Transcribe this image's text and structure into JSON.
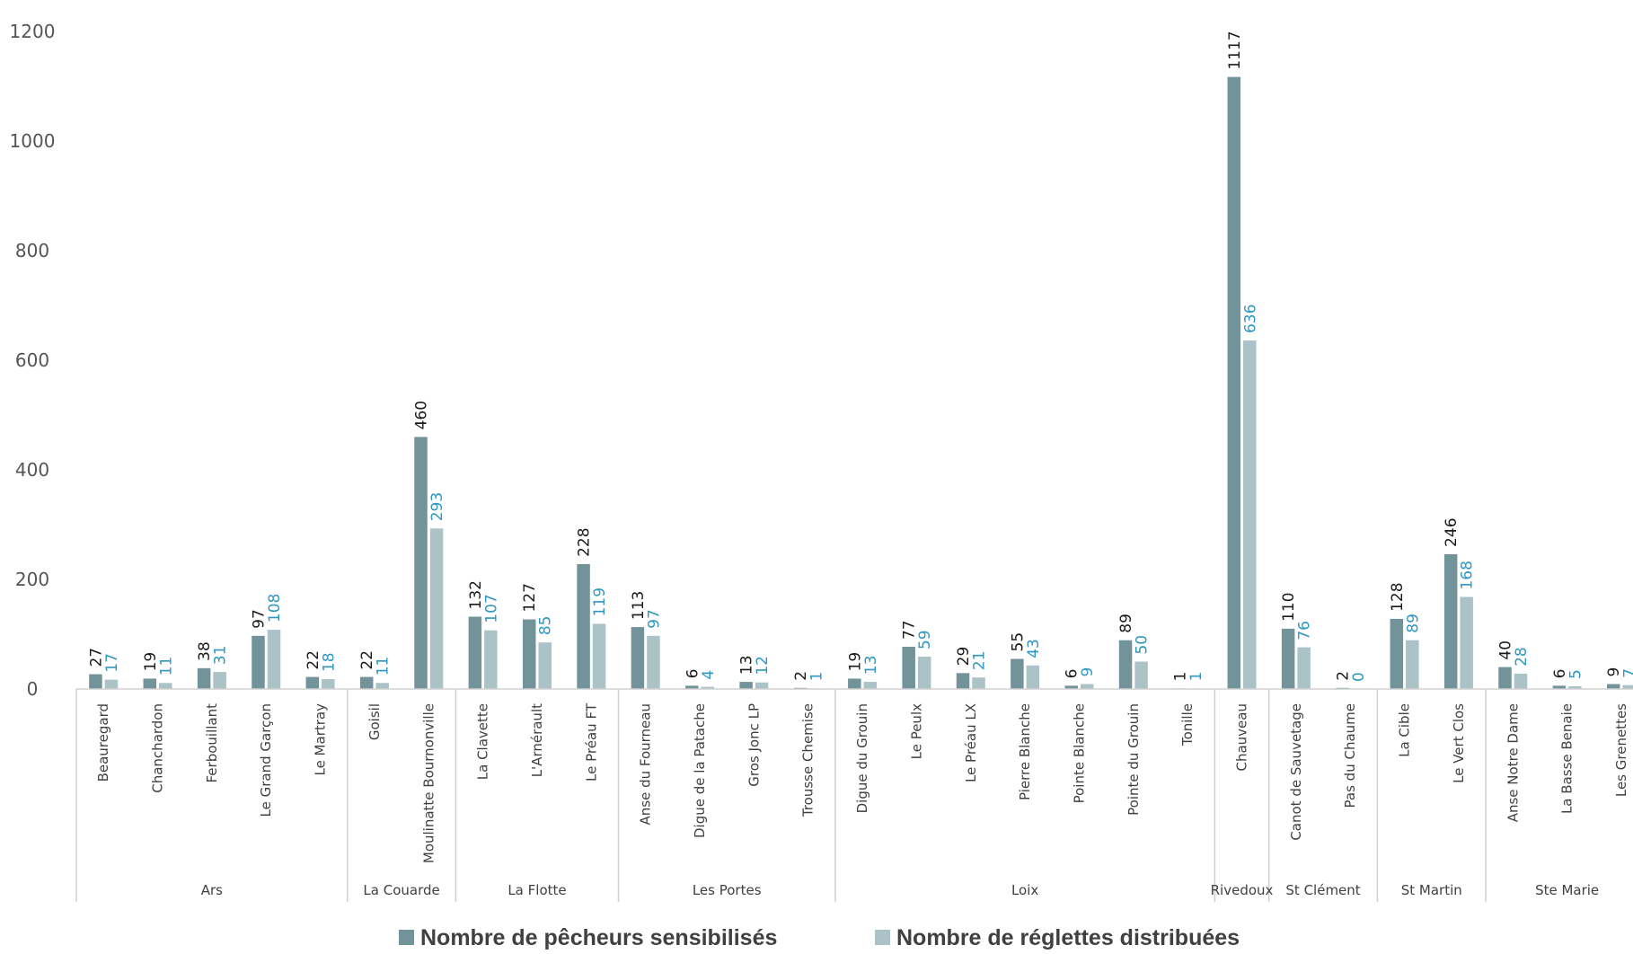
{
  "chart_data": {
    "type": "bar",
    "ylim": [
      0,
      1200
    ],
    "yticks": [
      0,
      200,
      400,
      600,
      800,
      1000,
      1200
    ],
    "grid": false,
    "legend_position": "bottom",
    "groups": [
      {
        "name": "Ars",
        "categories": [
          "Beauregard",
          "Chanchardon",
          "Ferbouillant",
          "Le Grand Garçon",
          "Le Martray"
        ]
      },
      {
        "name": "La Couarde",
        "categories": [
          "Goisil",
          "Moulinatte Bournonville"
        ]
      },
      {
        "name": "La Flotte",
        "categories": [
          "La Clavette",
          "L'Arnérault",
          "Le Préau FT"
        ]
      },
      {
        "name": "Les Portes",
        "categories": [
          "Anse du Fourneau",
          "Digue de la Patache",
          "Gros Jonc LP",
          "Trousse Chemise"
        ]
      },
      {
        "name": "Loix",
        "categories": [
          "Digue du Grouin",
          "Le Peulx",
          "Le Préau LX",
          "Pierre Blanche",
          "Pointe Blanche",
          "Pointe du Grouin",
          "Tonille"
        ]
      },
      {
        "name": "Rivedoux",
        "categories": [
          "Chauveau"
        ]
      },
      {
        "name": "St Clément",
        "categories": [
          "Canot de Sauvetage",
          "Pas du Chaume"
        ]
      },
      {
        "name": "St Martin",
        "categories": [
          "La Cible",
          "Le Vert Clos"
        ]
      },
      {
        "name": "Ste Marie",
        "categories": [
          "Anse Notre Dame",
          "La Basse Benaie",
          "Les Grenettes"
        ]
      }
    ],
    "series": [
      {
        "name": "Nombre de pêcheurs sensibilisés",
        "color": "#73939b",
        "label_color": "#1a1a1a",
        "values": [
          27,
          19,
          38,
          97,
          22,
          22,
          460,
          132,
          127,
          228,
          113,
          6,
          13,
          2,
          19,
          77,
          29,
          55,
          6,
          89,
          1,
          1117,
          110,
          2,
          128,
          246,
          40,
          6,
          9
        ]
      },
      {
        "name": "Nombre de réglettes distribuées",
        "color": "#abc2c7",
        "label_color": "#2f97c1",
        "values": [
          17,
          11,
          31,
          108,
          18,
          11,
          293,
          107,
          85,
          119,
          97,
          4,
          12,
          1,
          13,
          59,
          21,
          43,
          9,
          50,
          1,
          636,
          76,
          0,
          89,
          168,
          28,
          5,
          7
        ]
      }
    ]
  }
}
